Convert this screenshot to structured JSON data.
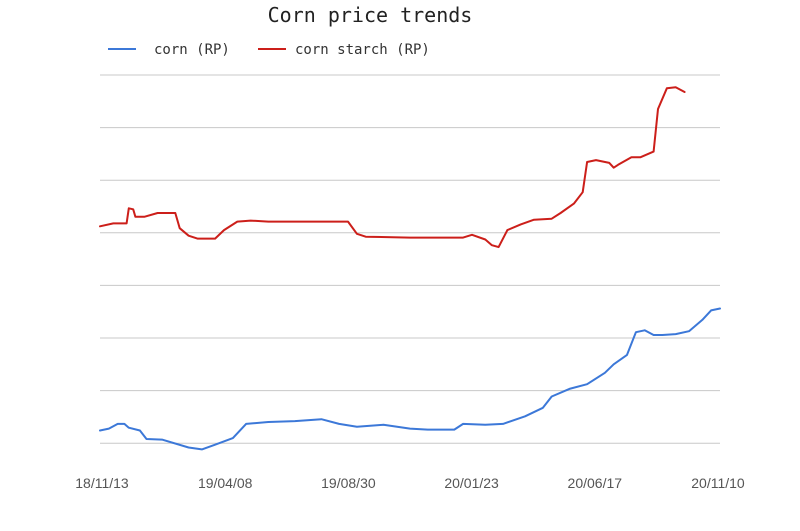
{
  "chart_data": {
    "type": "line",
    "title": "Corn price trends",
    "xlabel": "",
    "ylabel": "",
    "x_tick_labels": [
      "18/11/13",
      "19/04/08",
      "19/08/30",
      "20/01/23",
      "20/06/17",
      "20/11/10"
    ],
    "y_tick_labels": [],
    "y_gridlines": 8,
    "grid": true,
    "legend_position": "top-left",
    "series": [
      {
        "name": "corn (RP)",
        "color": "#3c78d8",
        "points": [
          [
            0,
            1.0
          ],
          [
            0.02,
            1.1
          ],
          [
            0.04,
            1.35
          ],
          [
            0.055,
            1.35
          ],
          [
            0.065,
            1.15
          ],
          [
            0.09,
            1.0
          ],
          [
            0.105,
            0.55
          ],
          [
            0.14,
            0.52
          ],
          [
            0.2,
            0.1
          ],
          [
            0.23,
            0.0
          ],
          [
            0.26,
            0.25
          ],
          [
            0.3,
            0.6
          ],
          [
            0.33,
            1.35
          ],
          [
            0.38,
            1.45
          ],
          [
            0.44,
            1.5
          ],
          [
            0.5,
            1.6
          ],
          [
            0.54,
            1.35
          ],
          [
            0.58,
            1.2
          ],
          [
            0.64,
            1.3
          ],
          [
            0.7,
            1.1
          ],
          [
            0.74,
            1.05
          ],
          [
            0.8,
            1.05
          ],
          [
            0.82,
            1.35
          ],
          [
            0.87,
            1.3
          ],
          [
            0.91,
            1.35
          ],
          [
            0.96,
            1.75
          ],
          [
            1.0,
            2.2
          ],
          [
            1.02,
            2.8
          ],
          [
            1.06,
            3.2
          ],
          [
            1.1,
            3.45
          ],
          [
            1.14,
            4.05
          ],
          [
            1.16,
            4.5
          ],
          [
            1.19,
            5.0
          ],
          [
            1.21,
            6.2
          ],
          [
            1.23,
            6.3
          ],
          [
            1.25,
            6.05
          ],
          [
            1.27,
            6.05
          ],
          [
            1.3,
            6.1
          ],
          [
            1.33,
            6.25
          ],
          [
            1.36,
            6.85
          ],
          [
            1.38,
            7.35
          ],
          [
            1.4,
            7.45
          ]
        ]
      },
      {
        "name": "corn starch (RP)",
        "color": "#cc1f1a",
        "points": [
          [
            0,
            11.8
          ],
          [
            0.03,
            11.95
          ],
          [
            0.06,
            11.95
          ],
          [
            0.065,
            12.75
          ],
          [
            0.075,
            12.7
          ],
          [
            0.08,
            12.3
          ],
          [
            0.1,
            12.3
          ],
          [
            0.13,
            12.5
          ],
          [
            0.17,
            12.5
          ],
          [
            0.18,
            11.7
          ],
          [
            0.2,
            11.3
          ],
          [
            0.22,
            11.15
          ],
          [
            0.26,
            11.15
          ],
          [
            0.28,
            11.6
          ],
          [
            0.31,
            12.05
          ],
          [
            0.34,
            12.1
          ],
          [
            0.38,
            12.05
          ],
          [
            0.45,
            12.05
          ],
          [
            0.56,
            12.05
          ],
          [
            0.58,
            11.4
          ],
          [
            0.6,
            11.25
          ],
          [
            0.7,
            11.2
          ],
          [
            0.82,
            11.2
          ],
          [
            0.84,
            11.35
          ],
          [
            0.87,
            11.1
          ],
          [
            0.885,
            10.8
          ],
          [
            0.9,
            10.7
          ],
          [
            0.92,
            11.6
          ],
          [
            0.95,
            11.9
          ],
          [
            0.98,
            12.15
          ],
          [
            1.02,
            12.2
          ],
          [
            1.04,
            12.5
          ],
          [
            1.07,
            13.0
          ],
          [
            1.09,
            13.6
          ],
          [
            1.1,
            15.2
          ],
          [
            1.12,
            15.3
          ],
          [
            1.15,
            15.15
          ],
          [
            1.16,
            14.9
          ],
          [
            1.17,
            15.05
          ],
          [
            1.2,
            15.45
          ],
          [
            1.22,
            15.45
          ],
          [
            1.25,
            15.75
          ],
          [
            1.26,
            18.0
          ],
          [
            1.28,
            19.1
          ],
          [
            1.3,
            19.15
          ],
          [
            1.32,
            18.9
          ]
        ]
      }
    ]
  }
}
